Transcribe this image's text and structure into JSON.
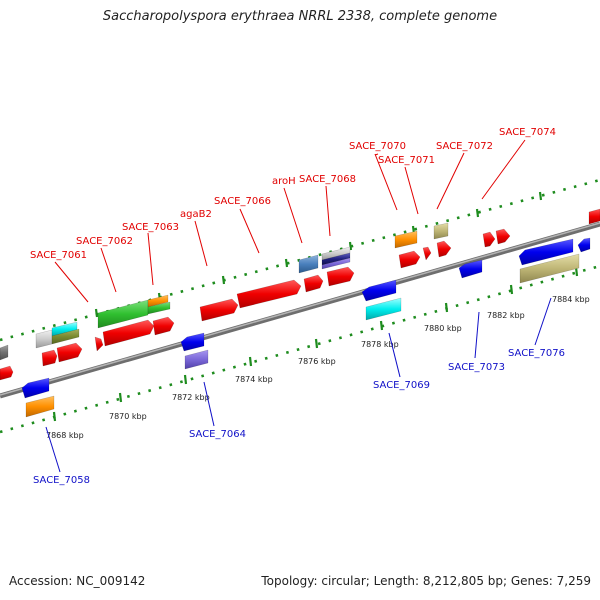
{
  "title": "Saccharopolyspora erythraea NRRL 2338, complete genome",
  "footer": {
    "accession": "Accession: NC_009142",
    "summary": "Topology: circular; Length: 8,212,805 bp; Genes: 7,259"
  },
  "kbp_labels": [
    "7868 kbp",
    "7870 kbp",
    "7872 kbp",
    "7874 kbp",
    "7876 kbp",
    "7878 kbp",
    "7880 kbp",
    "7882 kbp",
    "7884 kbp"
  ],
  "gene_labels_top": [
    "SACE_7061",
    "SACE_7062",
    "SACE_7063",
    "agaB2",
    "SACE_7066",
    "aroH",
    "SACE_7068",
    "SACE_7070",
    "SACE_7071",
    "SACE_7072",
    "SACE_7074"
  ],
  "gene_labels_bottom": [
    "SACE_7058",
    "SACE_7064",
    "SACE_7069",
    "SACE_7073",
    "SACE_7076"
  ],
  "colors": {
    "backbone": "#8a8a8a",
    "tick": "#1e8c1e",
    "top_label": "#e10000",
    "bottom_label": "#1010c8"
  }
}
